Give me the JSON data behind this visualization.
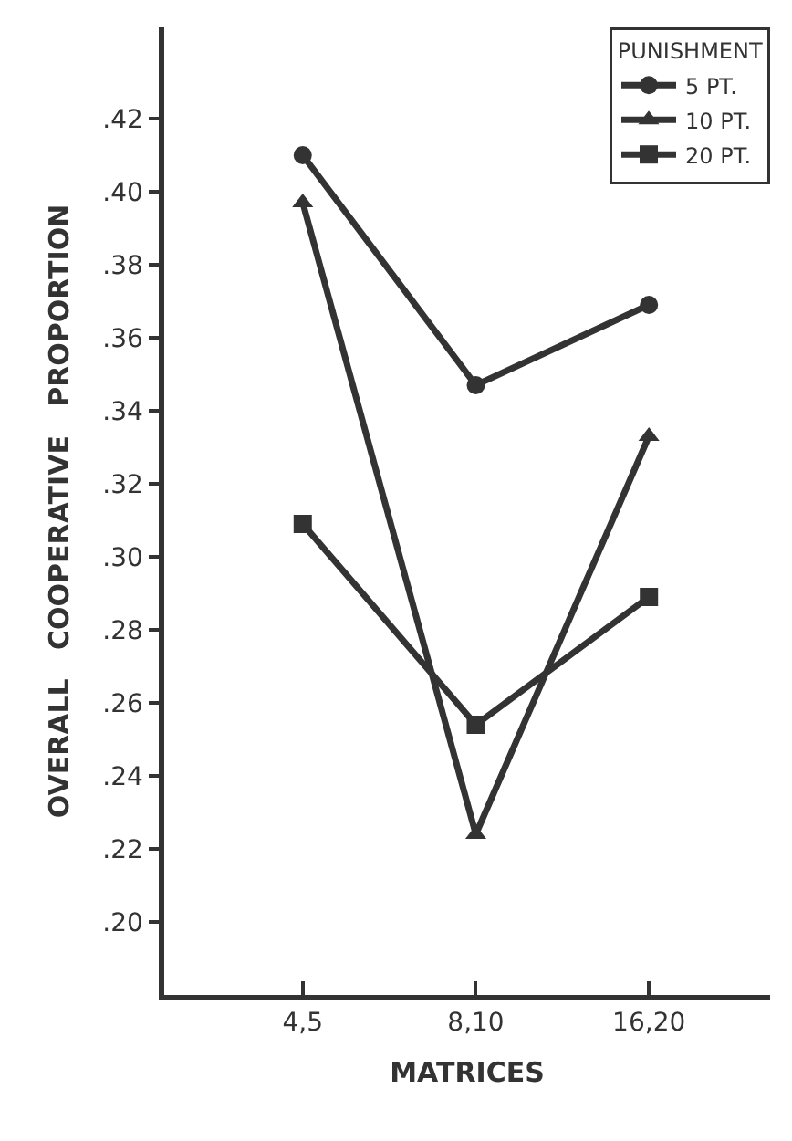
{
  "chart_data": {
    "type": "line",
    "xlabel": "MATRICES",
    "ylabel": "OVERALL   COOPERATIVE   PROPORTION",
    "legend_title": "PUNISHMENT",
    "categories": [
      "4,5",
      "8,10",
      "16,20"
    ],
    "series": [
      {
        "name": "5 PT.",
        "color": "#333333",
        "marker": "circle",
        "values": [
          0.41,
          0.347,
          0.369
        ]
      },
      {
        "name": "10 PT.",
        "color": "#333333",
        "marker": "triangle",
        "values": [
          0.397,
          0.224,
          0.333
        ]
      },
      {
        "name": "20 PT.",
        "color": "#333333",
        "marker": "square",
        "values": [
          0.309,
          0.254,
          0.289
        ]
      }
    ],
    "ylim": [
      0.18,
      0.445
    ],
    "yticks": [
      {
        "value": 0.2,
        "label": ".20"
      },
      {
        "value": 0.22,
        "label": ".22"
      },
      {
        "value": 0.24,
        "label": ".24"
      },
      {
        "value": 0.26,
        "label": ".26"
      },
      {
        "value": 0.28,
        "label": ".28"
      },
      {
        "value": 0.3,
        "label": ".30"
      },
      {
        "value": 0.32,
        "label": ".32"
      },
      {
        "value": 0.34,
        "label": ".34"
      },
      {
        "value": 0.36,
        "label": ".36"
      },
      {
        "value": 0.38,
        "label": ".38"
      },
      {
        "value": 0.4,
        "label": ".40"
      },
      {
        "value": 0.42,
        "label": ".42"
      }
    ],
    "legend": "top right",
    "line_style": "solid"
  }
}
